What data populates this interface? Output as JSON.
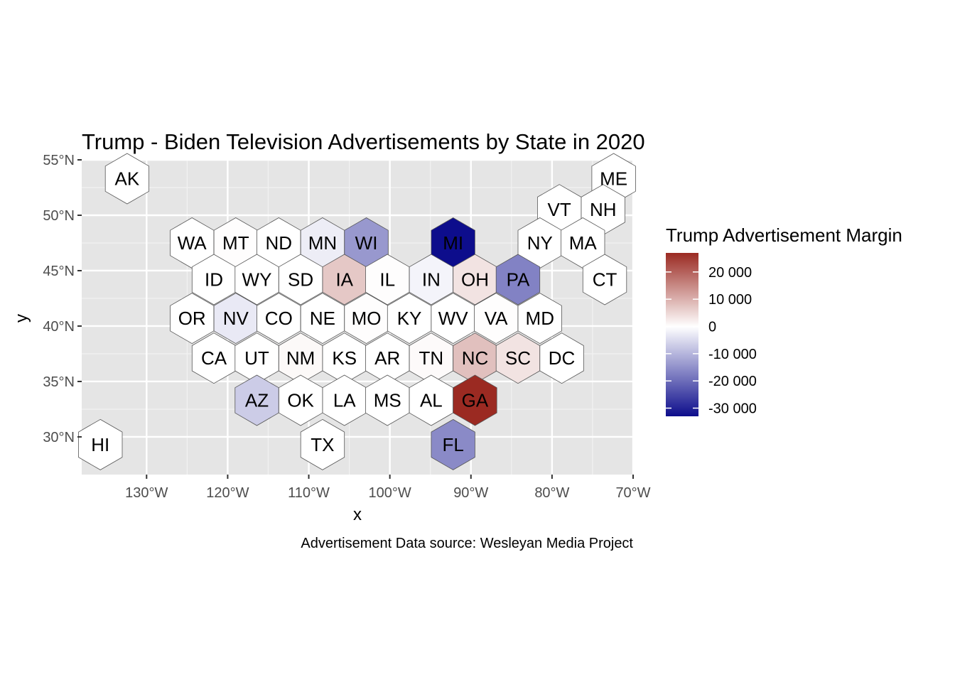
{
  "title": "Trump - Biden Television Advertisements by State in 2020",
  "caption": "Advertisement Data source: Wesleyan Media Project",
  "chart_data": {
    "type": "hexbin-map",
    "title": "Trump - Biden Television Advertisements by State in 2020",
    "xlabel": "x",
    "ylabel": "y",
    "xlim": [
      -138,
      -70
    ],
    "ylim": [
      26.6,
      55
    ],
    "x_ticks": [
      {
        "value": -130,
        "label": "130°W"
      },
      {
        "value": -120,
        "label": "120°W"
      },
      {
        "value": -110,
        "label": "110°W"
      },
      {
        "value": -100,
        "label": "100°W"
      },
      {
        "value": -90,
        "label": "90°W"
      },
      {
        "value": -80,
        "label": "80°W"
      },
      {
        "value": -70,
        "label": "70°W"
      }
    ],
    "y_ticks": [
      {
        "value": 55,
        "label": "55°N"
      },
      {
        "value": 50,
        "label": "50°N"
      },
      {
        "value": 45,
        "label": "45°N"
      },
      {
        "value": 40,
        "label": "40°N"
      },
      {
        "value": 35,
        "label": "35°N"
      },
      {
        "value": 30,
        "label": "30°N"
      }
    ],
    "grid": true,
    "legend": {
      "title": "Trump Advertisement Margin",
      "placement": "right",
      "min": -33000,
      "max": 27000,
      "ticks": [
        {
          "value": 20000,
          "label": "20 000"
        },
        {
          "value": 10000,
          "label": "10 000"
        },
        {
          "value": 0,
          "label": "0"
        },
        {
          "value": -10000,
          "label": "-10 000"
        },
        {
          "value": -20000,
          "label": "-20 000"
        },
        {
          "value": -30000,
          "label": "-30 000"
        }
      ],
      "colors": {
        "low": "#0d0d8c",
        "mid": "#ffffff",
        "high": "#9b2a22"
      }
    },
    "states": [
      {
        "abbr": "AK",
        "x": -132.4,
        "y": 53.3,
        "value": 0
      },
      {
        "abbr": "ME",
        "x": -72.4,
        "y": 53.3,
        "value": 0
      },
      {
        "abbr": "VT",
        "x": -79.1,
        "y": 50.5,
        "value": 0
      },
      {
        "abbr": "NH",
        "x": -73.7,
        "y": 50.5,
        "value": 0
      },
      {
        "abbr": "WA",
        "x": -124.4,
        "y": 47.5,
        "value": 0
      },
      {
        "abbr": "MT",
        "x": -119.0,
        "y": 47.5,
        "value": 200
      },
      {
        "abbr": "ND",
        "x": -113.7,
        "y": 47.5,
        "value": 0
      },
      {
        "abbr": "MN",
        "x": -108.3,
        "y": 47.5,
        "value": -2500
      },
      {
        "abbr": "WI",
        "x": -102.9,
        "y": 47.5,
        "value": -14000
      },
      {
        "abbr": "MI",
        "x": -92.2,
        "y": 47.5,
        "value": -33000
      },
      {
        "abbr": "NY",
        "x": -81.5,
        "y": 47.5,
        "value": 0
      },
      {
        "abbr": "MA",
        "x": -76.2,
        "y": 47.5,
        "value": 0
      },
      {
        "abbr": "ID",
        "x": -121.7,
        "y": 44.2,
        "value": 0
      },
      {
        "abbr": "WY",
        "x": -116.4,
        "y": 44.2,
        "value": 0
      },
      {
        "abbr": "SD",
        "x": -111.0,
        "y": 44.2,
        "value": 0
      },
      {
        "abbr": "IA",
        "x": -105.6,
        "y": 44.2,
        "value": 7000
      },
      {
        "abbr": "IL",
        "x": -100.3,
        "y": 44.2,
        "value": 300
      },
      {
        "abbr": "IN",
        "x": -94.9,
        "y": 44.2,
        "value": -1500
      },
      {
        "abbr": "OH",
        "x": -89.5,
        "y": 44.2,
        "value": 3500
      },
      {
        "abbr": "PA",
        "x": -84.2,
        "y": 44.2,
        "value": -17000
      },
      {
        "abbr": "CT",
        "x": -73.5,
        "y": 44.2,
        "value": 0
      },
      {
        "abbr": "OR",
        "x": -124.4,
        "y": 40.7,
        "value": 0
      },
      {
        "abbr": "NV",
        "x": -119.0,
        "y": 40.7,
        "value": -3000
      },
      {
        "abbr": "CO",
        "x": -113.7,
        "y": 40.7,
        "value": 0
      },
      {
        "abbr": "NE",
        "x": -108.3,
        "y": 40.7,
        "value": 0
      },
      {
        "abbr": "MO",
        "x": -102.9,
        "y": 40.7,
        "value": 200
      },
      {
        "abbr": "KY",
        "x": -97.6,
        "y": 40.7,
        "value": 0
      },
      {
        "abbr": "WV",
        "x": -92.2,
        "y": 40.7,
        "value": 0
      },
      {
        "abbr": "VA",
        "x": -86.9,
        "y": 40.7,
        "value": 300
      },
      {
        "abbr": "MD",
        "x": -81.5,
        "y": 40.7,
        "value": 0
      },
      {
        "abbr": "CA",
        "x": -121.7,
        "y": 37.1,
        "value": 0
      },
      {
        "abbr": "UT",
        "x": -116.4,
        "y": 37.1,
        "value": 0
      },
      {
        "abbr": "NM",
        "x": -111.0,
        "y": 37.1,
        "value": 800
      },
      {
        "abbr": "KS",
        "x": -105.6,
        "y": 37.1,
        "value": 0
      },
      {
        "abbr": "AR",
        "x": -100.3,
        "y": 37.1,
        "value": 0
      },
      {
        "abbr": "TN",
        "x": -94.9,
        "y": 37.1,
        "value": 600
      },
      {
        "abbr": "NC",
        "x": -89.5,
        "y": 37.1,
        "value": 8000
      },
      {
        "abbr": "SC",
        "x": -84.2,
        "y": 37.1,
        "value": 3500
      },
      {
        "abbr": "DC",
        "x": -78.8,
        "y": 37.1,
        "value": 0
      },
      {
        "abbr": "AZ",
        "x": -116.4,
        "y": 33.3,
        "value": -7000
      },
      {
        "abbr": "OK",
        "x": -111.0,
        "y": 33.3,
        "value": 0
      },
      {
        "abbr": "LA",
        "x": -105.6,
        "y": 33.3,
        "value": 0
      },
      {
        "abbr": "MS",
        "x": -100.3,
        "y": 33.3,
        "value": 0
      },
      {
        "abbr": "AL",
        "x": -94.9,
        "y": 33.3,
        "value": 0
      },
      {
        "abbr": "GA",
        "x": -89.5,
        "y": 33.3,
        "value": 27000
      },
      {
        "abbr": "HI",
        "x": -135.7,
        "y": 29.3,
        "value": 0
      },
      {
        "abbr": "TX",
        "x": -108.3,
        "y": 29.3,
        "value": 0
      },
      {
        "abbr": "FL",
        "x": -92.2,
        "y": 29.3,
        "value": -16000
      }
    ]
  }
}
